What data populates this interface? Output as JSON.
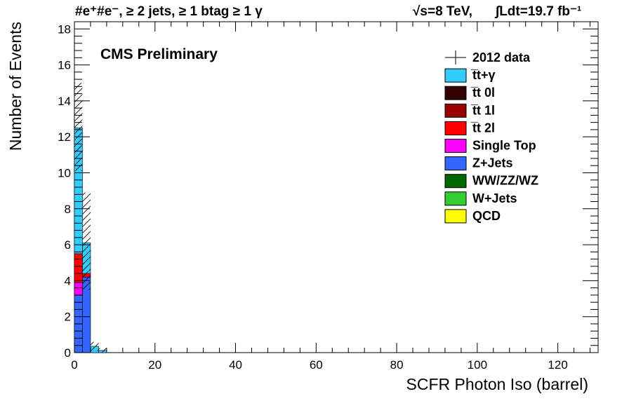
{
  "header": {
    "selection": "#e⁺#e⁻, ≥ 2 jets, ≥ 1 btag ≥ 1 γ",
    "energy": "√s=8 TeV,",
    "lumi": "∫Ldt=19.7 fb⁻¹"
  },
  "chart_data": {
    "type": "bar",
    "subtype": "stacked-histogram",
    "title": "",
    "annotation": "CMS Preliminary",
    "xlabel": "SCFR Photon Iso (barrel)",
    "ylabel": "Number of Events",
    "xlim": [
      0,
      130
    ],
    "ylim": [
      0,
      18.4
    ],
    "xticks": [
      0,
      20,
      40,
      60,
      80,
      100,
      120
    ],
    "yticks": [
      0,
      2,
      4,
      6,
      8,
      10,
      12,
      14,
      16,
      18
    ],
    "bin_edges": [
      0,
      2,
      4,
      6,
      8
    ],
    "legend_position": "top-right",
    "series": [
      {
        "name": "QCD",
        "color": "#ffff00",
        "values": [
          0,
          0,
          0,
          0
        ]
      },
      {
        "name": "W+Jets",
        "color": "#33cc33",
        "values": [
          0,
          0,
          0,
          0
        ]
      },
      {
        "name": "WW/ZZ/WZ",
        "color": "#006600",
        "values": [
          0,
          0,
          0,
          0
        ]
      },
      {
        "name": "Z+Jets",
        "color": "#3366ff",
        "values": [
          3.2,
          4.2,
          0,
          0
        ]
      },
      {
        "name": "Single Top",
        "color": "#ff00ff",
        "values": [
          0.7,
          0,
          0,
          0
        ]
      },
      {
        "name": "t̅t 2l",
        "color": "#ff0000",
        "values": [
          1.6,
          0.2,
          0,
          0
        ]
      },
      {
        "name": "t̅t 1l",
        "color": "#990000",
        "values": [
          0,
          0,
          0,
          0
        ]
      },
      {
        "name": "t̅t 0l",
        "color": "#330000",
        "values": [
          0,
          0,
          0,
          0
        ]
      },
      {
        "name": "t̅t+γ",
        "color": "#33ccff",
        "values": [
          7.0,
          1.7,
          0.35,
          0.12
        ]
      }
    ],
    "uncertainty_band": {
      "style": "hatched",
      "values": [
        [
          10.1,
          15.0
        ],
        [
          3.5,
          8.9
        ],
        [
          0.1,
          0.6
        ],
        [
          0,
          0.25
        ]
      ]
    },
    "legend": [
      {
        "name": "2012 data",
        "style": "marker"
      },
      {
        "name": "t̅t+γ",
        "color": "#33ccff"
      },
      {
        "name": "t̅t 0l",
        "color": "#330000"
      },
      {
        "name": "t̅t 1l",
        "color": "#990000"
      },
      {
        "name": "t̅t 2l",
        "color": "#ff0000"
      },
      {
        "name": "Single Top",
        "color": "#ff00ff"
      },
      {
        "name": "Z+Jets",
        "color": "#3366ff"
      },
      {
        "name": "WW/ZZ/WZ",
        "color": "#006600"
      },
      {
        "name": "W+Jets",
        "color": "#33cc33"
      },
      {
        "name": "QCD",
        "color": "#ffff00"
      }
    ]
  }
}
